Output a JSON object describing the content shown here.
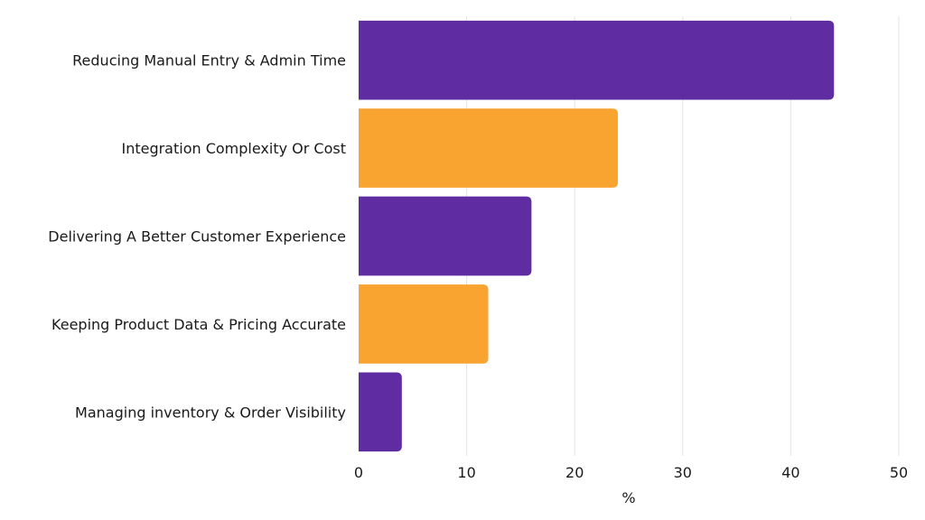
{
  "chart_data": {
    "type": "bar",
    "orientation": "horizontal",
    "title": "",
    "xlabel": "%",
    "ylabel": "",
    "xlim": [
      0,
      50
    ],
    "xticks": [
      0,
      10,
      20,
      30,
      40,
      50
    ],
    "grid": true,
    "legend": "none",
    "categories": [
      "Reducing Manual Entry & Admin Time",
      "Integration Complexity Or Cost",
      "Delivering A Better Customer Experience",
      "Keeping Product Data & Pricing Accurate",
      "Managing inventory & Order Visibility"
    ],
    "values": [
      44,
      24,
      16,
      12,
      4
    ],
    "colors": [
      "#5f2da1",
      "#f9a431",
      "#5f2da1",
      "#f9a431",
      "#5f2da1"
    ]
  }
}
